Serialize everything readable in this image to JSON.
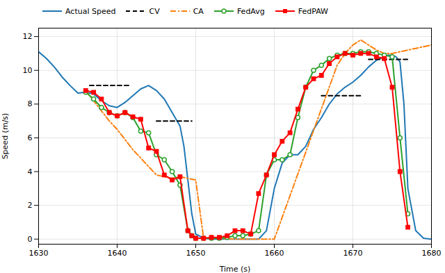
{
  "chart_data": {
    "type": "line",
    "xlabel": "Time (s)",
    "ylabel": "Speed (m/s)",
    "xlim": [
      1630,
      1680
    ],
    "ylim": [
      -0.3,
      12.5
    ],
    "xticks": [
      1630,
      1640,
      1650,
      1660,
      1670,
      1680
    ],
    "yticks": [
      0,
      2,
      4,
      6,
      8,
      10,
      12
    ],
    "grid": true,
    "series": [
      {
        "name": "Actual Speed",
        "color": "#1f77b4",
        "line_style": "solid",
        "x": [
          1630,
          1631,
          1632,
          1633,
          1634,
          1635,
          1636,
          1637,
          1638,
          1639,
          1640,
          1641,
          1642,
          1643,
          1644,
          1645,
          1646,
          1647,
          1648,
          1648.5,
          1649,
          1649.5,
          1650,
          1651,
          1652,
          1653,
          1654,
          1655,
          1656,
          1657,
          1658,
          1659,
          1660,
          1661,
          1662,
          1663,
          1664,
          1665,
          1666,
          1667,
          1668,
          1669,
          1670,
          1671,
          1672,
          1673,
          1674,
          1674.5,
          1675,
          1675.5,
          1676,
          1676.5,
          1677,
          1678,
          1679,
          1680
        ],
        "values": [
          11.1,
          10.7,
          10.2,
          9.6,
          9.1,
          8.65,
          8.7,
          8.6,
          8.2,
          7.9,
          7.8,
          8.1,
          8.5,
          8.9,
          9.1,
          8.8,
          8.3,
          7.5,
          6.7,
          5.5,
          3.5,
          1.5,
          0.3,
          0.05,
          0.0,
          0.0,
          0.0,
          0.0,
          0.0,
          0.0,
          0.0,
          0.5,
          3.0,
          4.5,
          5.0,
          5.0,
          5.5,
          6.5,
          7.2,
          8.0,
          8.6,
          9.0,
          9.3,
          9.7,
          10.2,
          10.6,
          10.8,
          10.9,
          10.9,
          10.8,
          10.5,
          8.0,
          3.0,
          0.5,
          0.05,
          0.0
        ]
      },
      {
        "name": "CV",
        "color": "#000000",
        "line_style": "dashed",
        "x": [
          1636.5,
          1641.5,
          null,
          1645,
          1649.5,
          null,
          1666,
          1671,
          null,
          1672,
          1677
        ],
        "values": [
          9.1,
          9.1,
          null,
          7.0,
          7.0,
          null,
          8.5,
          8.5,
          null,
          10.65,
          10.65
        ]
      },
      {
        "name": "CA",
        "color": "#ff7f0e",
        "line_style": "dashdot",
        "x": [
          1636,
          1637,
          1638,
          1639,
          1640,
          1641,
          1642,
          1643,
          1644,
          1645,
          1646,
          1647,
          1648,
          1649,
          1650,
          1651,
          1652,
          1653,
          1654,
          1655,
          1656,
          1657,
          1658,
          1659,
          1660,
          1668,
          1669,
          1670,
          1671,
          1672,
          1673,
          1674,
          1675,
          1676,
          1677,
          1678,
          1679,
          1680
        ],
        "values": [
          8.8,
          8.2,
          7.6,
          7.0,
          6.5,
          5.9,
          5.3,
          4.8,
          4.3,
          3.8,
          3.7,
          3.6,
          3.7,
          3.6,
          3.5,
          0.05,
          0.05,
          0.03,
          0.02,
          0.0,
          0.0,
          0.0,
          0.0,
          0.0,
          0.0,
          10.3,
          11.0,
          11.5,
          11.8,
          11.5,
          11.2,
          11.0,
          11.0,
          11.1,
          11.2,
          11.3,
          11.4,
          11.5
        ]
      },
      {
        "name": "FedAvg",
        "color": "#2ca02c",
        "line_style": "solid",
        "marker": "circle",
        "x": [
          1636,
          1637,
          1638,
          1639,
          1640,
          1641,
          1642,
          1643,
          1644,
          1645,
          1646,
          1647,
          1648,
          1649,
          1649.5,
          1650,
          1651,
          1652,
          1653,
          1654,
          1655,
          1656,
          1657,
          1658,
          1659,
          1660,
          1661,
          1662,
          1663,
          1664,
          1665,
          1666,
          1667,
          1668,
          1669,
          1670,
          1671,
          1672,
          1673,
          1674,
          1675,
          1676,
          1677
        ],
        "values": [
          8.7,
          8.3,
          7.8,
          7.5,
          7.3,
          7.5,
          7.2,
          6.4,
          6.3,
          5.0,
          4.7,
          4.0,
          3.2,
          0.5,
          0.2,
          0.05,
          0.05,
          0.05,
          0.05,
          0.1,
          0.2,
          0.2,
          0.3,
          0.5,
          3.8,
          4.7,
          4.7,
          5.0,
          7.2,
          9.0,
          10.0,
          10.3,
          10.7,
          10.9,
          11.0,
          11.0,
          11.1,
          11.1,
          11.0,
          10.9,
          10.8,
          6.0,
          1.5
        ]
      },
      {
        "name": "FedPAW",
        "color": "#ff0000",
        "line_style": "solid",
        "marker": "square",
        "x": [
          1636,
          1637,
          1638,
          1639,
          1640,
          1641,
          1642,
          1643,
          1644,
          1645,
          1646,
          1647,
          1648,
          1649,
          1649.5,
          1650,
          1651,
          1652,
          1653,
          1654,
          1655,
          1656,
          1657,
          1658,
          1659,
          1660,
          1661,
          1662,
          1663,
          1664,
          1665,
          1666,
          1667,
          1668,
          1669,
          1670,
          1671,
          1672,
          1673,
          1674,
          1675,
          1676,
          1677
        ],
        "values": [
          8.8,
          8.7,
          8.3,
          7.5,
          7.3,
          7.5,
          7.25,
          7.1,
          5.4,
          5.2,
          3.8,
          3.5,
          3.7,
          0.5,
          0.2,
          0.05,
          0.05,
          0.1,
          0.1,
          0.2,
          0.5,
          0.5,
          0.3,
          2.7,
          3.8,
          5.0,
          5.8,
          6.3,
          7.7,
          9.0,
          9.5,
          9.7,
          10.4,
          10.8,
          11.0,
          10.9,
          11.0,
          11.0,
          10.8,
          10.7,
          9.0,
          4.0,
          0.7
        ]
      }
    ]
  }
}
